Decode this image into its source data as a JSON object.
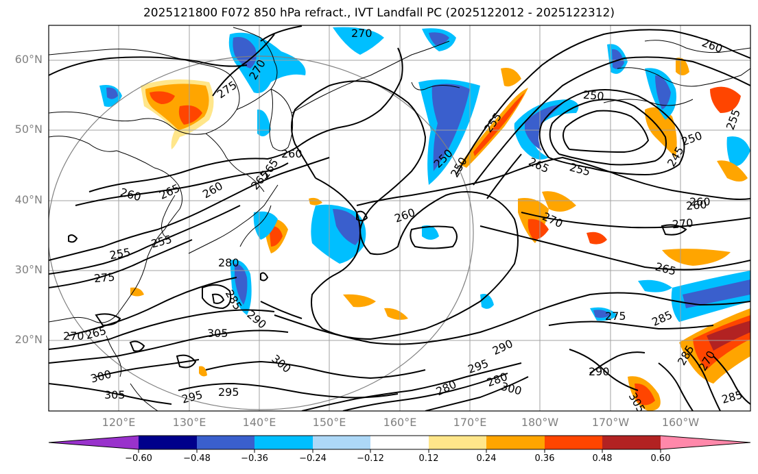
{
  "title": "2025121800 F072 850 hPa refract., IVT Landfall PC (2025122012 - 2025122312)",
  "map": {
    "lat_labels": [
      "60°N",
      "50°N",
      "40°N",
      "30°N",
      "20°N"
    ],
    "lon_labels": [
      "120°E",
      "130°E",
      "140°E",
      "150°E",
      "160°E",
      "170°E",
      "180°W",
      "170°W",
      "160°W"
    ],
    "lat_range": [
      10,
      65
    ],
    "lon_range": [
      110,
      210
    ],
    "gridlines": true,
    "colors": {
      "grid": "#a0a0a0",
      "coast": "#000000",
      "contour": "#000000",
      "circle": "#808080"
    },
    "contour_labels": [
      "270",
      "270",
      "275",
      "260",
      "260",
      "265",
      "260",
      "265",
      "255",
      "260",
      "255",
      "250",
      "250",
      "255",
      "245",
      "265",
      "255",
      "250",
      "260",
      "260",
      "270",
      "270",
      "265",
      "255",
      "275",
      "280",
      "285",
      "290",
      "305",
      "300",
      "295",
      "295",
      "300",
      "305",
      "280",
      "295",
      "300",
      "290",
      "285",
      "275",
      "285",
      "280",
      "270",
      "290",
      "270",
      "265",
      "285",
      "305",
      "260",
      "250",
      "265"
    ]
  },
  "colorbar": {
    "tick_labels": [
      "−0.60",
      "−0.48",
      "−0.36",
      "−0.24",
      "−0.12",
      "0.12",
      "0.24",
      "0.36",
      "0.48",
      "0.60"
    ],
    "colors": [
      "#9932cc",
      "#00008b",
      "#3a5fcd",
      "#00bfff",
      "#add8f7",
      "#ffffff",
      "#ffe68a",
      "#ffa500",
      "#ff4500",
      "#b22222",
      "#ff88aa"
    ]
  }
}
